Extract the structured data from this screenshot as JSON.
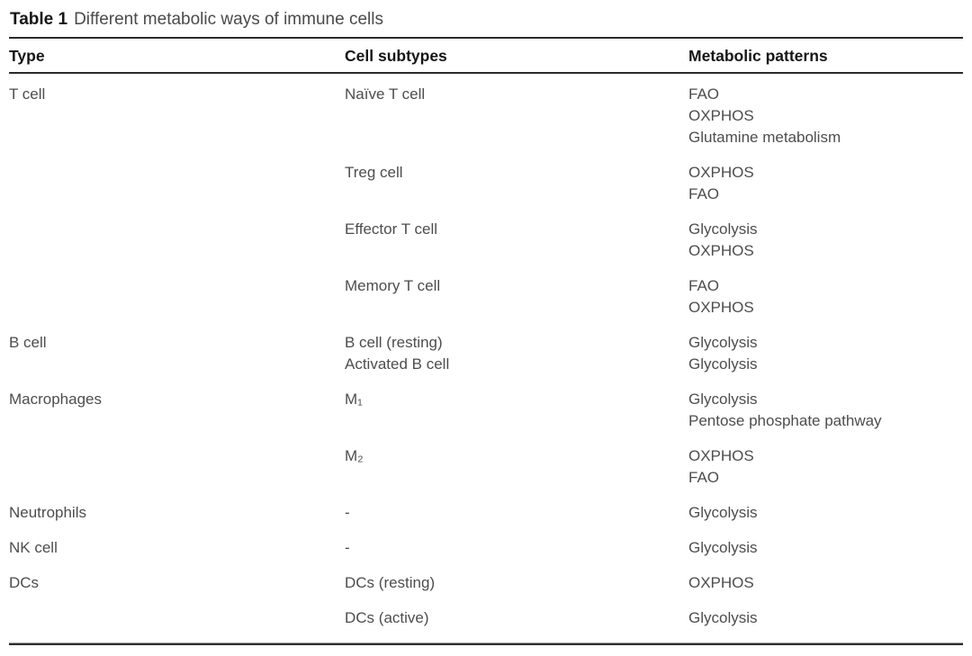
{
  "table": {
    "caption": {
      "label": "Table 1",
      "text": "Different metabolic ways of immune cells"
    },
    "columns": [
      "Type",
      "Cell subtypes",
      "Metabolic patterns"
    ],
    "rows": [
      {
        "type": "T cell",
        "groups": [
          {
            "subtypes": [
              "Naïve T cell"
            ],
            "patterns": [
              "FAO",
              "OXPHOS",
              "Glutamine metabolism"
            ]
          },
          {
            "subtypes": [
              "Treg cell"
            ],
            "patterns": [
              "OXPHOS",
              "FAO"
            ]
          },
          {
            "subtypes": [
              "Effector T cell"
            ],
            "patterns": [
              "Glycolysis",
              "OXPHOS"
            ]
          },
          {
            "subtypes": [
              "Memory T cell"
            ],
            "patterns": [
              "FAO",
              "OXPHOS"
            ]
          }
        ]
      },
      {
        "type": "B cell",
        "groups": [
          {
            "subtypes": [
              "B cell (resting)",
              "Activated B cell"
            ],
            "patterns": [
              "Glycolysis",
              "Glycolysis"
            ]
          }
        ]
      },
      {
        "type": "Macrophages",
        "groups": [
          {
            "subtypes": [
              "M₁"
            ],
            "patterns": [
              "Glycolysis",
              "Pentose phosphate pathway"
            ]
          },
          {
            "subtypes": [
              "M₂"
            ],
            "patterns": [
              "OXPHOS",
              "FAO"
            ]
          }
        ]
      },
      {
        "type": "Neutrophils",
        "groups": [
          {
            "subtypes": [
              "-"
            ],
            "patterns": [
              "Glycolysis"
            ]
          }
        ]
      },
      {
        "type": "NK cell",
        "groups": [
          {
            "subtypes": [
              "-"
            ],
            "patterns": [
              "Glycolysis"
            ]
          }
        ]
      },
      {
        "type": "DCs",
        "groups": [
          {
            "subtypes": [
              "DCs (resting)"
            ],
            "patterns": [
              "OXPHOS"
            ]
          },
          {
            "subtypes": [
              "DCs (active)"
            ],
            "patterns": [
              "Glycolysis"
            ]
          }
        ]
      }
    ],
    "colors": {
      "header_text": "#161616",
      "body_text": "#4d4d4d",
      "rule": "#2b2b2b"
    }
  }
}
